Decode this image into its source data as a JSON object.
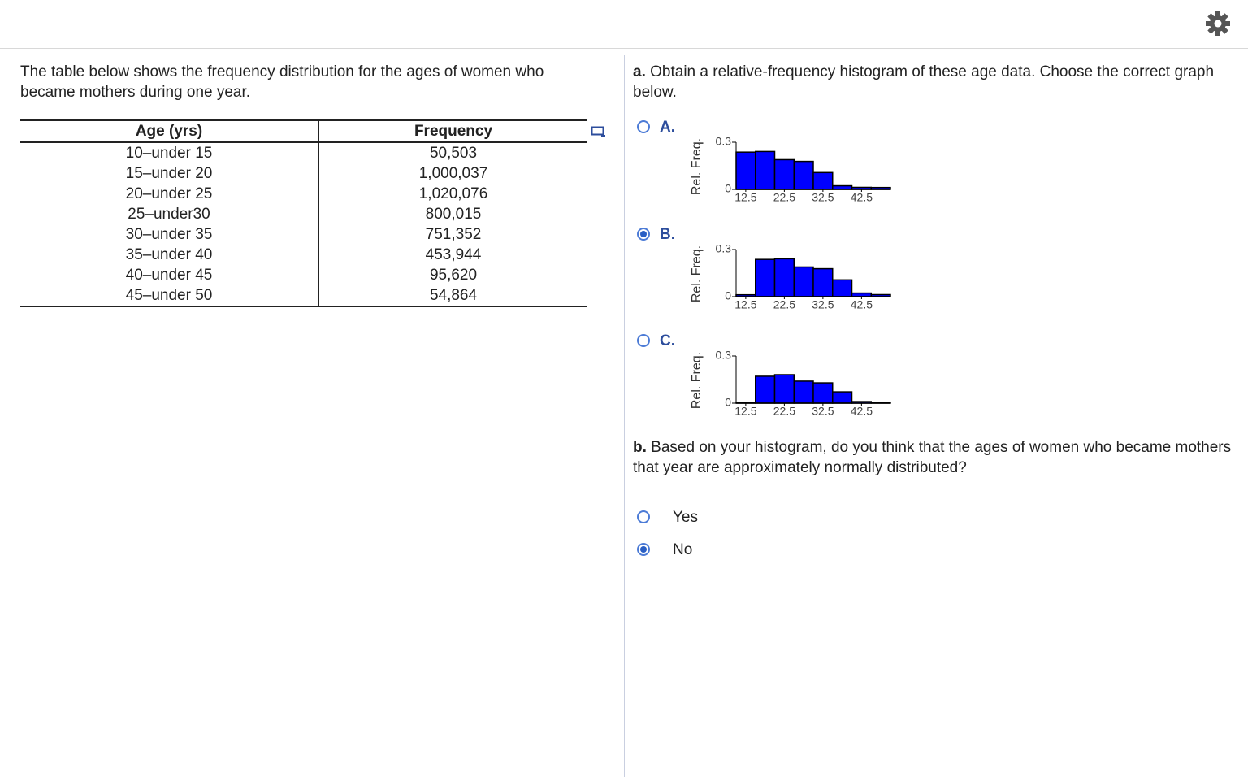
{
  "intro": "The table below shows the frequency distribution for the ages of women who became mothers during one year.",
  "table": {
    "header": [
      "Age (yrs)",
      "Frequency"
    ],
    "rows": [
      [
        "10–under 15",
        "50,503"
      ],
      [
        "15–under 20",
        "1,000,037"
      ],
      [
        "20–under 25",
        "1,020,076"
      ],
      [
        "25–under30",
        "800,015"
      ],
      [
        "30–under 35",
        "751,352"
      ],
      [
        "35–under 40",
        "453,944"
      ],
      [
        "40–under 45",
        "95,620"
      ],
      [
        "45–under 50",
        "54,864"
      ]
    ]
  },
  "question_a": {
    "label": "a.",
    "text": "Obtain a relative-frequency histogram of these age data. Choose the correct graph below.",
    "options": [
      {
        "label": "A.",
        "selected": false,
        "chart": {
          "type": "histogram",
          "y_label": "Rel. Freq.",
          "color": "#0000ff",
          "bins": [
            10,
            15,
            20,
            25,
            30,
            35,
            40,
            45,
            50
          ],
          "values": [
            0.237,
            0.241,
            0.189,
            0.178,
            0.107,
            0.023,
            0.013,
            0.012
          ],
          "xlim": [
            10,
            50
          ],
          "xticks": [
            12.5,
            22.5,
            32.5,
            42.5
          ],
          "ylim": [
            0,
            0.3
          ],
          "yticks": [
            0,
            0.3
          ]
        }
      },
      {
        "label": "B.",
        "selected": true,
        "chart": {
          "type": "histogram",
          "y_label": "Rel. Freq.",
          "color": "#0000ff",
          "bins": [
            10,
            15,
            20,
            25,
            30,
            35,
            40,
            45,
            50
          ],
          "values": [
            0.012,
            0.237,
            0.241,
            0.189,
            0.178,
            0.107,
            0.023,
            0.013
          ],
          "xlim": [
            10,
            50
          ],
          "xticks": [
            12.5,
            22.5,
            32.5,
            42.5
          ],
          "ylim": [
            0,
            0.3
          ],
          "yticks": [
            0,
            0.3
          ]
        }
      },
      {
        "label": "C.",
        "selected": false,
        "chart": {
          "type": "histogram",
          "y_label": "Rel. Freq.",
          "color": "#0000ff",
          "bins": [
            10,
            15,
            20,
            25,
            30,
            35,
            40,
            45,
            50
          ],
          "values": [
            0.006,
            0.171,
            0.181,
            0.14,
            0.129,
            0.072,
            0.01,
            0.005
          ],
          "xlim": [
            10,
            50
          ],
          "xticks": [
            12.5,
            22.5,
            32.5,
            42.5
          ],
          "ylim": [
            0,
            0.3
          ],
          "yticks": [
            0,
            0.3
          ]
        }
      }
    ]
  },
  "question_b": {
    "label": "b.",
    "text": "Based on your histogram, do you think that the ages of women who became mothers that year are approximately normally distributed?",
    "options": [
      {
        "label": "Yes",
        "selected": false
      },
      {
        "label": "No",
        "selected": true
      }
    ]
  }
}
